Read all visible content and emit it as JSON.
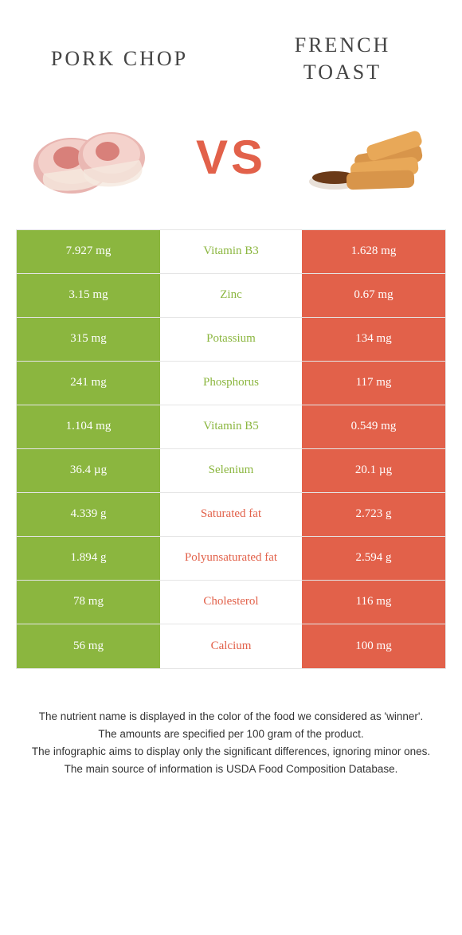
{
  "header": {
    "left_title": "PORK CHOP",
    "right_title": "FRENCH TOAST",
    "vs_label": "VS"
  },
  "colors": {
    "green": "#8bb63f",
    "orange": "#e2614a",
    "row_border": "#e5e5e5",
    "background": "#ffffff"
  },
  "rows": [
    {
      "left": "7.927 mg",
      "nutrient": "Vitamin B3",
      "right": "1.628 mg",
      "winner": "left"
    },
    {
      "left": "3.15 mg",
      "nutrient": "Zinc",
      "right": "0.67 mg",
      "winner": "left"
    },
    {
      "left": "315 mg",
      "nutrient": "Potassium",
      "right": "134 mg",
      "winner": "left"
    },
    {
      "left": "241 mg",
      "nutrient": "Phosphorus",
      "right": "117 mg",
      "winner": "left"
    },
    {
      "left": "1.104 mg",
      "nutrient": "Vitamin B5",
      "right": "0.549 mg",
      "winner": "left"
    },
    {
      "left": "36.4 µg",
      "nutrient": "Selenium",
      "right": "20.1 µg",
      "winner": "left"
    },
    {
      "left": "4.339 g",
      "nutrient": "Saturated fat",
      "right": "2.723 g",
      "winner": "right"
    },
    {
      "left": "1.894 g",
      "nutrient": "Polyunsaturated fat",
      "right": "2.594 g",
      "winner": "right"
    },
    {
      "left": "78 mg",
      "nutrient": "Cholesterol",
      "right": "116 mg",
      "winner": "right"
    },
    {
      "left": "56 mg",
      "nutrient": "Calcium",
      "right": "100 mg",
      "winner": "right"
    }
  ],
  "footnotes": [
    "The nutrient name is displayed in the color of the food we considered as 'winner'.",
    "The amounts are specified per 100 gram of the product.",
    "The infographic aims to display only the significant differences, ignoring minor ones.",
    "The main source of information is USDA Food Composition Database."
  ]
}
